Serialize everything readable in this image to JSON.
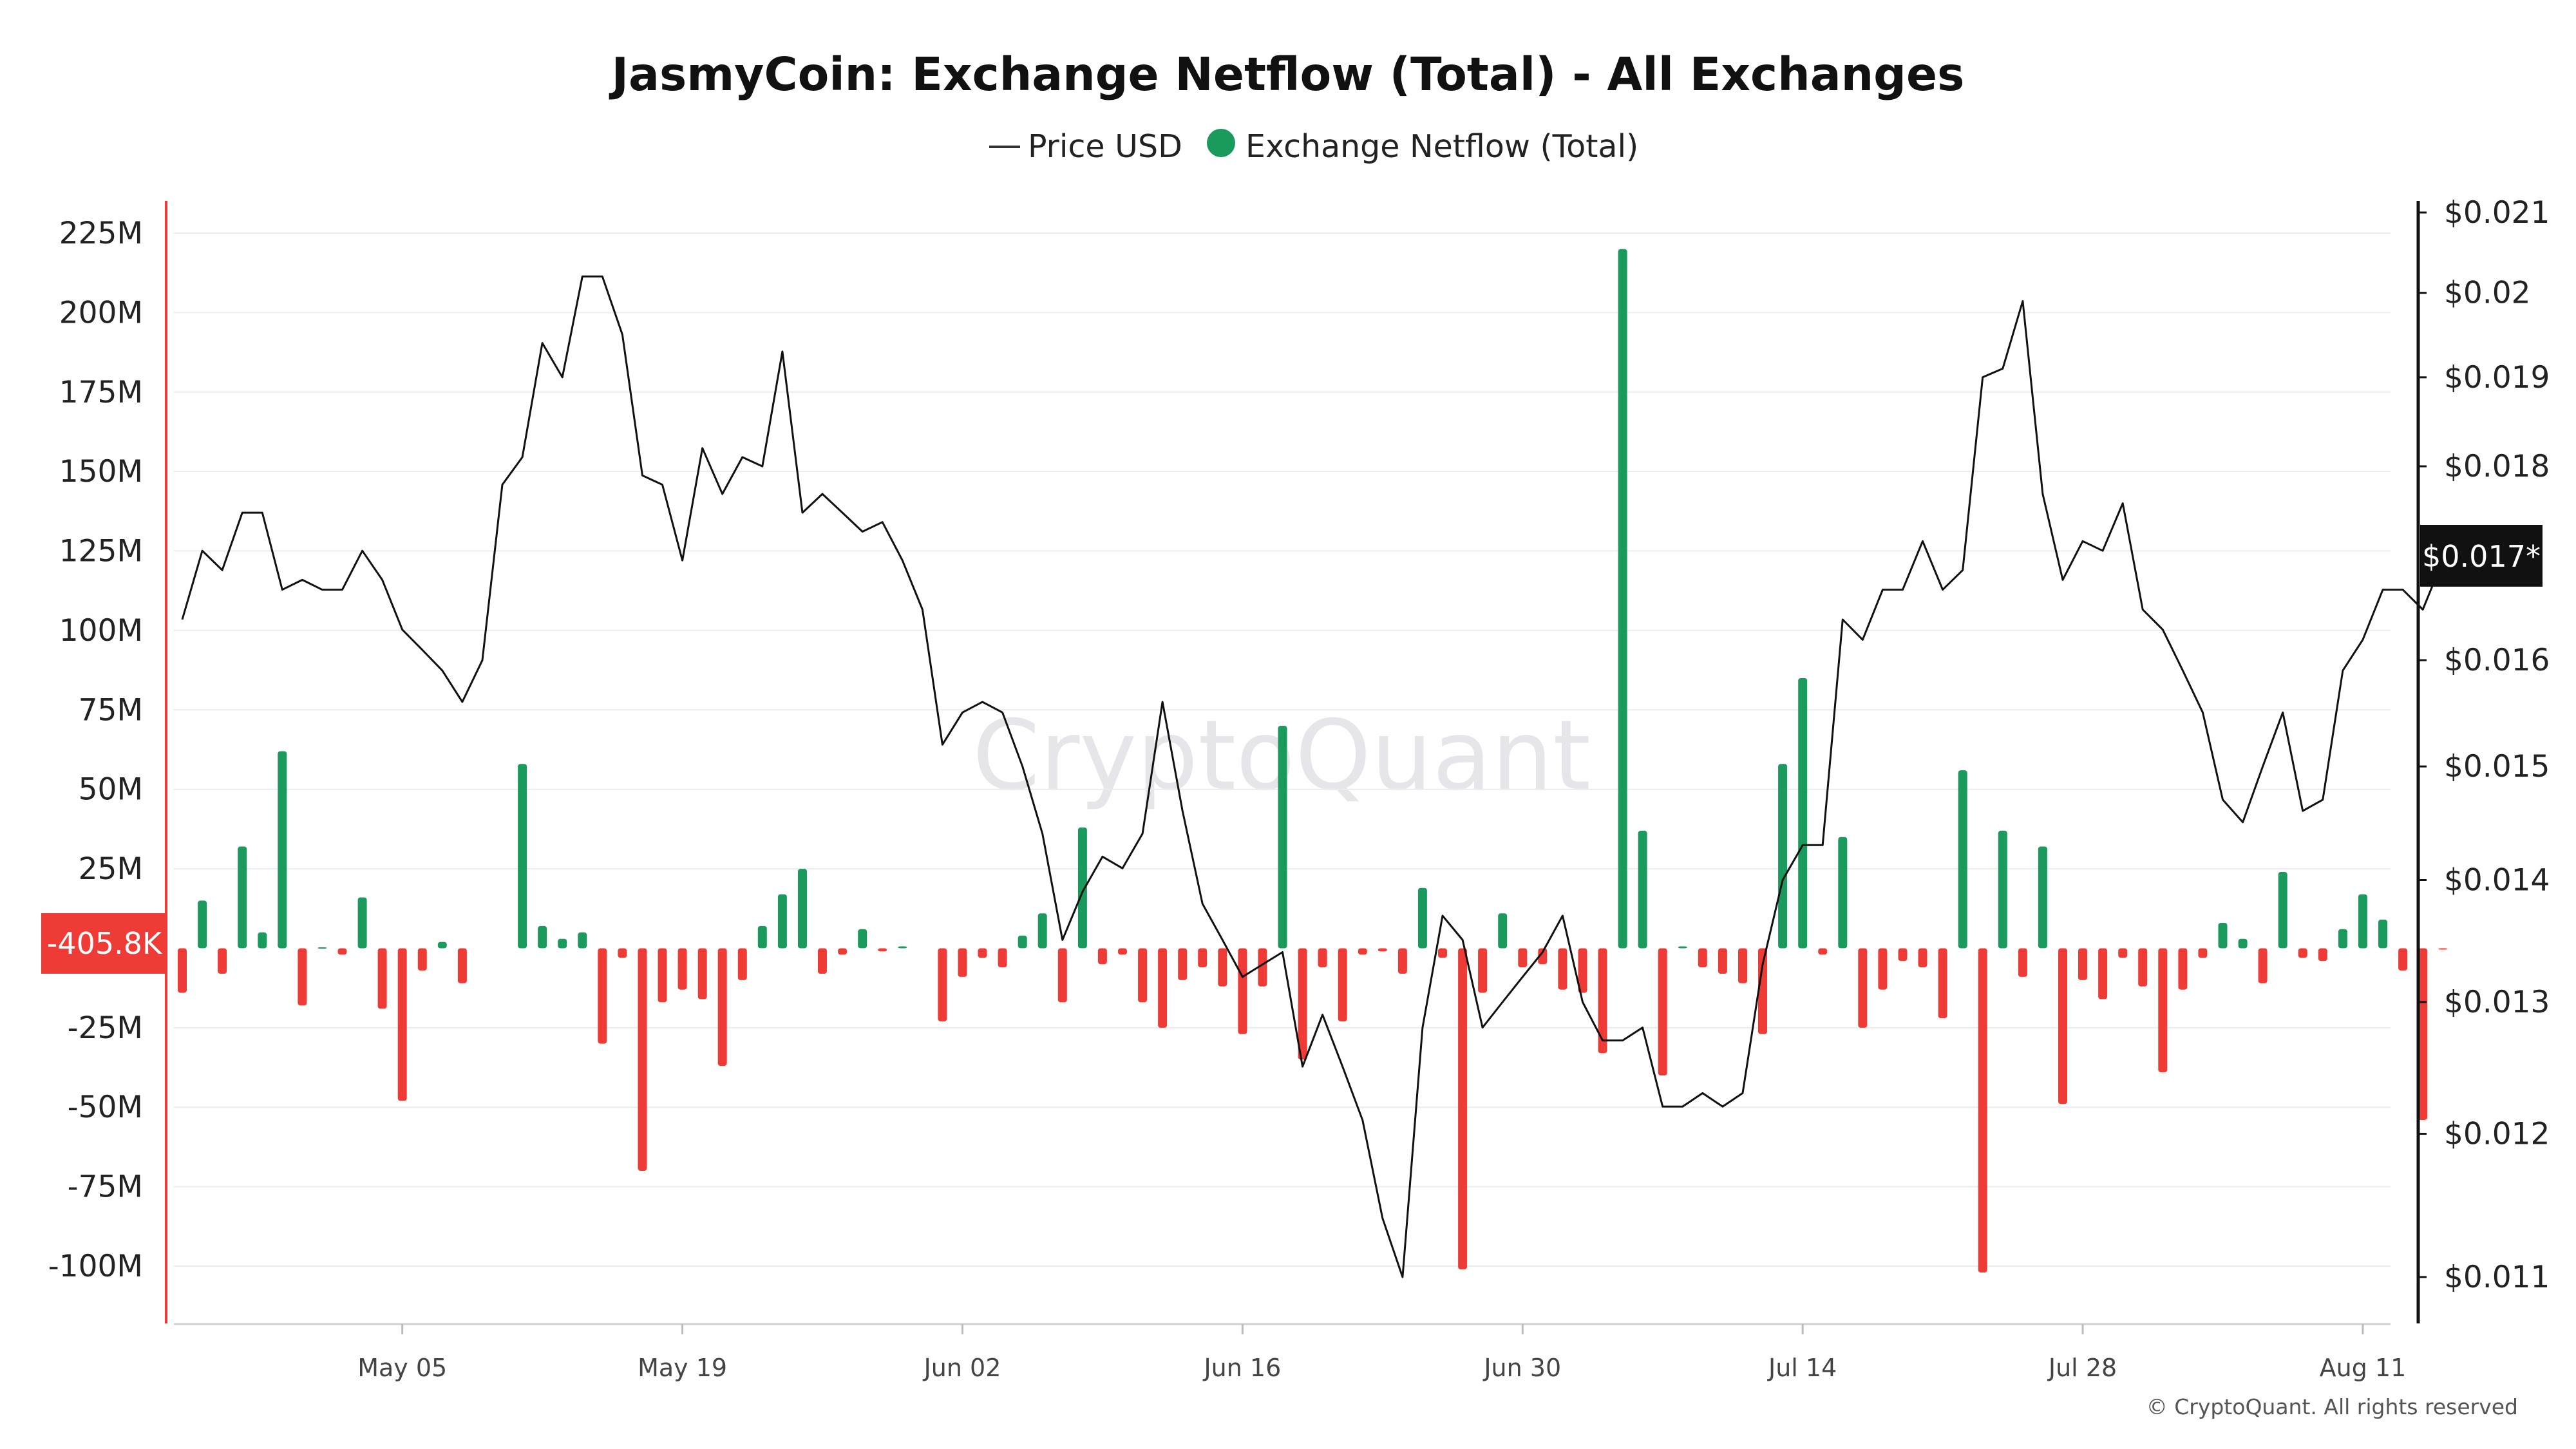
{
  "chart_data": {
    "type": "bar+line",
    "title": "JasmyCoin: Exchange Netflow (Total) - All Exchanges",
    "legend": [
      {
        "name": "Price USD",
        "marker": "line",
        "color": "#222222"
      },
      {
        "name": "Exchange Netflow (Total)",
        "marker": "dot",
        "color": "#1a9a5c"
      }
    ],
    "legend_position": "top-center",
    "colors": {
      "positive": "#1a9a5c",
      "negative": "#ef3b36",
      "price_line": "#111111",
      "left_axis": "#ef3b36",
      "right_axis": "#111111",
      "grid": "#ececec"
    },
    "x_axis": {
      "start": "2024-04-24",
      "end": "2024-08-12",
      "ticks": [
        "May 05",
        "May 19",
        "Jun 02",
        "Jun 16",
        "Jun 30",
        "Jul 14",
        "Jul 28",
        "Aug 11"
      ],
      "tick_dates": [
        "2024-05-05",
        "2024-05-19",
        "2024-06-02",
        "2024-06-16",
        "2024-06-30",
        "2024-07-14",
        "2024-07-28",
        "2024-08-11"
      ]
    },
    "left_axis": {
      "ticks": [
        "225M",
        "200M",
        "175M",
        "150M",
        "125M",
        "100M",
        "75M",
        "50M",
        "25M",
        "-25M",
        "-50M",
        "-75M",
        "-100M"
      ],
      "tick_values": [
        225,
        200,
        175,
        150,
        125,
        100,
        75,
        50,
        25,
        -25,
        -50,
        -75,
        -100
      ],
      "units": "millions",
      "range": [
        -118,
        238
      ],
      "current_value_label": "-405.8K",
      "current_value": -0.4058
    },
    "right_axis": {
      "scale": "log",
      "ticks": [
        "$0.021",
        "$0.02",
        "$0.019",
        "$0.018",
        "$0.016",
        "$0.015",
        "$0.014",
        "$0.013",
        "$0.012",
        "$0.011"
      ],
      "tick_values": [
        0.021,
        0.02,
        0.019,
        0.018,
        0.016,
        0.015,
        0.014,
        0.013,
        0.012,
        0.011
      ],
      "range": [
        0.01055,
        0.02115
      ],
      "current_price_label": "$0.017*",
      "current_price": 0.017
    },
    "series": [
      {
        "name": "Exchange Netflow (Total)",
        "type": "bar",
        "axis": "left",
        "unit": "M",
        "points": [
          [
            "2024-04-24",
            -14
          ],
          [
            "2024-04-25",
            15
          ],
          [
            "2024-04-26",
            -8
          ],
          [
            "2024-04-27",
            32
          ],
          [
            "2024-04-28",
            5
          ],
          [
            "2024-04-29",
            62
          ],
          [
            "2024-04-30",
            -18
          ],
          [
            "2024-05-01",
            0.3
          ],
          [
            "2024-05-02",
            -2
          ],
          [
            "2024-05-03",
            16
          ],
          [
            "2024-05-04",
            -19
          ],
          [
            "2024-05-05",
            -48
          ],
          [
            "2024-05-06",
            -7
          ],
          [
            "2024-05-07",
            2
          ],
          [
            "2024-05-08",
            -11
          ],
          [
            "2024-05-11",
            58
          ],
          [
            "2024-05-12",
            7
          ],
          [
            "2024-05-13",
            3
          ],
          [
            "2024-05-14",
            5
          ],
          [
            "2024-05-15",
            -30
          ],
          [
            "2024-05-16",
            -3
          ],
          [
            "2024-05-17",
            -70
          ],
          [
            "2024-05-18",
            -17
          ],
          [
            "2024-05-19",
            -13
          ],
          [
            "2024-05-20",
            -16
          ],
          [
            "2024-05-21",
            -37
          ],
          [
            "2024-05-22",
            -10
          ],
          [
            "2024-05-23",
            7
          ],
          [
            "2024-05-24",
            17
          ],
          [
            "2024-05-25",
            25
          ],
          [
            "2024-05-26",
            -8
          ],
          [
            "2024-05-27",
            -2
          ],
          [
            "2024-05-28",
            6
          ],
          [
            "2024-05-29",
            -1
          ],
          [
            "2024-05-30",
            0.6
          ],
          [
            "2024-06-01",
            -23
          ],
          [
            "2024-06-02",
            -9
          ],
          [
            "2024-06-03",
            -3
          ],
          [
            "2024-06-04",
            -6
          ],
          [
            "2024-06-05",
            4
          ],
          [
            "2024-06-06",
            11
          ],
          [
            "2024-06-07",
            -17
          ],
          [
            "2024-06-08",
            38
          ],
          [
            "2024-06-09",
            -5
          ],
          [
            "2024-06-10",
            -2
          ],
          [
            "2024-06-11",
            -17
          ],
          [
            "2024-06-12",
            -25
          ],
          [
            "2024-06-13",
            -10
          ],
          [
            "2024-06-14",
            -6
          ],
          [
            "2024-06-15",
            -12
          ],
          [
            "2024-06-16",
            -27
          ],
          [
            "2024-06-17",
            -12
          ],
          [
            "2024-06-18",
            70
          ],
          [
            "2024-06-19",
            -35
          ],
          [
            "2024-06-20",
            -6
          ],
          [
            "2024-06-21",
            -23
          ],
          [
            "2024-06-22",
            -2
          ],
          [
            "2024-06-23",
            -1
          ],
          [
            "2024-06-24",
            -8
          ],
          [
            "2024-06-25",
            19
          ],
          [
            "2024-06-26",
            -3
          ],
          [
            "2024-06-27",
            -101
          ],
          [
            "2024-06-28",
            -14
          ],
          [
            "2024-06-29",
            11
          ],
          [
            "2024-06-30",
            -6
          ],
          [
            "2024-07-01",
            -5
          ],
          [
            "2024-07-02",
            -13
          ],
          [
            "2024-07-03",
            -14
          ],
          [
            "2024-07-04",
            -33
          ],
          [
            "2024-07-05",
            220
          ],
          [
            "2024-07-06",
            37
          ],
          [
            "2024-07-07",
            -40
          ],
          [
            "2024-07-08",
            0.6
          ],
          [
            "2024-07-09",
            -6
          ],
          [
            "2024-07-10",
            -8
          ],
          [
            "2024-07-11",
            -11
          ],
          [
            "2024-07-12",
            -27
          ],
          [
            "2024-07-13",
            58
          ],
          [
            "2024-07-14",
            85
          ],
          [
            "2024-07-15",
            -2
          ],
          [
            "2024-07-16",
            35
          ],
          [
            "2024-07-17",
            -25
          ],
          [
            "2024-07-18",
            -13
          ],
          [
            "2024-07-19",
            -4
          ],
          [
            "2024-07-20",
            -6
          ],
          [
            "2024-07-21",
            -22
          ],
          [
            "2024-07-22",
            56
          ],
          [
            "2024-07-23",
            -102
          ],
          [
            "2024-07-24",
            37
          ],
          [
            "2024-07-25",
            -9
          ],
          [
            "2024-07-26",
            32
          ],
          [
            "2024-07-27",
            -49
          ],
          [
            "2024-07-28",
            -10
          ],
          [
            "2024-07-29",
            -16
          ],
          [
            "2024-07-30",
            -3
          ],
          [
            "2024-07-31",
            -12
          ],
          [
            "2024-08-01",
            -39
          ],
          [
            "2024-08-02",
            -13
          ],
          [
            "2024-08-03",
            -3
          ],
          [
            "2024-08-04",
            8
          ],
          [
            "2024-08-05",
            3
          ],
          [
            "2024-08-06",
            -11
          ],
          [
            "2024-08-07",
            24
          ],
          [
            "2024-08-08",
            -3
          ],
          [
            "2024-08-09",
            -4
          ],
          [
            "2024-08-10",
            6
          ],
          [
            "2024-08-11",
            17
          ],
          [
            "2024-08-12",
            9
          ],
          [
            "2024-08-13",
            -7
          ],
          [
            "2024-08-14",
            -54
          ],
          [
            "2024-08-15",
            -0.4058
          ]
        ]
      },
      {
        "name": "Price USD",
        "type": "line",
        "axis": "right",
        "unit": "USD",
        "points": [
          [
            "2024-04-24",
            0.0164
          ],
          [
            "2024-04-25",
            0.0171
          ],
          [
            "2024-04-26",
            0.0169
          ],
          [
            "2024-04-27",
            0.0175
          ],
          [
            "2024-04-28",
            0.0175
          ],
          [
            "2024-04-29",
            0.0167
          ],
          [
            "2024-04-30",
            0.0168
          ],
          [
            "2024-05-01",
            0.0167
          ],
          [
            "2024-05-02",
            0.0167
          ],
          [
            "2024-05-03",
            0.0171
          ],
          [
            "2024-05-04",
            0.0168
          ],
          [
            "2024-05-05",
            0.0163
          ],
          [
            "2024-05-06",
            0.0161
          ],
          [
            "2024-05-07",
            0.0159
          ],
          [
            "2024-05-08",
            0.0156
          ],
          [
            "2024-05-09",
            0.016
          ],
          [
            "2024-05-10",
            0.0178
          ],
          [
            "2024-05-11",
            0.0181
          ],
          [
            "2024-05-12",
            0.0194
          ],
          [
            "2024-05-13",
            0.019
          ],
          [
            "2024-05-14",
            0.0202
          ],
          [
            "2024-05-15",
            0.0202
          ],
          [
            "2024-05-16",
            0.0195
          ],
          [
            "2024-05-17",
            0.0179
          ],
          [
            "2024-05-18",
            0.0178
          ],
          [
            "2024-05-19",
            0.017
          ],
          [
            "2024-05-20",
            0.0182
          ],
          [
            "2024-05-21",
            0.0177
          ],
          [
            "2024-05-22",
            0.0181
          ],
          [
            "2024-05-23",
            0.018
          ],
          [
            "2024-05-24",
            0.0193
          ],
          [
            "2024-05-25",
            0.0175
          ],
          [
            "2024-05-26",
            0.0177
          ],
          [
            "2024-05-27",
            0.0175
          ],
          [
            "2024-05-28",
            0.0173
          ],
          [
            "2024-05-29",
            0.0174
          ],
          [
            "2024-05-30",
            0.017
          ],
          [
            "2024-05-31",
            0.0165
          ],
          [
            "2024-06-01",
            0.0152
          ],
          [
            "2024-06-02",
            0.0155
          ],
          [
            "2024-06-03",
            0.0156
          ],
          [
            "2024-06-04",
            0.0155
          ],
          [
            "2024-06-05",
            0.015
          ],
          [
            "2024-06-06",
            0.0144
          ],
          [
            "2024-06-07",
            0.0135
          ],
          [
            "2024-06-08",
            0.0139
          ],
          [
            "2024-06-09",
            0.0142
          ],
          [
            "2024-06-10",
            0.0141
          ],
          [
            "2024-06-11",
            0.0144
          ],
          [
            "2024-06-12",
            0.0156
          ],
          [
            "2024-06-13",
            0.0146
          ],
          [
            "2024-06-14",
            0.0138
          ],
          [
            "2024-06-15",
            0.0135
          ],
          [
            "2024-06-16",
            0.0132
          ],
          [
            "2024-06-17",
            0.0133
          ],
          [
            "2024-06-18",
            0.0134
          ],
          [
            "2024-06-19",
            0.0125
          ],
          [
            "2024-06-20",
            0.0129
          ],
          [
            "2024-06-21",
            0.0125
          ],
          [
            "2024-06-22",
            0.0121
          ],
          [
            "2024-06-23",
            0.0114
          ],
          [
            "2024-06-24",
            0.011
          ],
          [
            "2024-06-25",
            0.0128
          ],
          [
            "2024-06-26",
            0.0137
          ],
          [
            "2024-06-27",
            0.0135
          ],
          [
            "2024-06-28",
            0.0128
          ],
          [
            "2024-06-29",
            0.013
          ],
          [
            "2024-06-30",
            0.0132
          ],
          [
            "2024-07-01",
            0.0134
          ],
          [
            "2024-07-02",
            0.0137
          ],
          [
            "2024-07-03",
            0.013
          ],
          [
            "2024-07-04",
            0.0127
          ],
          [
            "2024-07-05",
            0.0127
          ],
          [
            "2024-07-06",
            0.0128
          ],
          [
            "2024-07-07",
            0.0122
          ],
          [
            "2024-07-08",
            0.0122
          ],
          [
            "2024-07-09",
            0.0123
          ],
          [
            "2024-07-10",
            0.0122
          ],
          [
            "2024-07-11",
            0.0123
          ],
          [
            "2024-07-12",
            0.0133
          ],
          [
            "2024-07-13",
            0.014
          ],
          [
            "2024-07-14",
            0.0143
          ],
          [
            "2024-07-15",
            0.0143
          ],
          [
            "2024-07-16",
            0.0164
          ],
          [
            "2024-07-17",
            0.0162
          ],
          [
            "2024-07-18",
            0.0167
          ],
          [
            "2024-07-19",
            0.0167
          ],
          [
            "2024-07-20",
            0.0172
          ],
          [
            "2024-07-21",
            0.0167
          ],
          [
            "2024-07-22",
            0.0169
          ],
          [
            "2024-07-23",
            0.019
          ],
          [
            "2024-07-24",
            0.0191
          ],
          [
            "2024-07-25",
            0.0199
          ],
          [
            "2024-07-26",
            0.0177
          ],
          [
            "2024-07-27",
            0.0168
          ],
          [
            "2024-07-28",
            0.0172
          ],
          [
            "2024-07-29",
            0.0171
          ],
          [
            "2024-07-30",
            0.0176
          ],
          [
            "2024-07-31",
            0.0165
          ],
          [
            "2024-08-01",
            0.0163
          ],
          [
            "2024-08-02",
            0.0159
          ],
          [
            "2024-08-03",
            0.0155
          ],
          [
            "2024-08-04",
            0.0147
          ],
          [
            "2024-08-05",
            0.0145
          ],
          [
            "2024-08-06",
            0.015
          ],
          [
            "2024-08-07",
            0.0155
          ],
          [
            "2024-08-08",
            0.0146
          ],
          [
            "2024-08-09",
            0.0147
          ],
          [
            "2024-08-10",
            0.0159
          ],
          [
            "2024-08-11",
            0.0162
          ],
          [
            "2024-08-12",
            0.0167
          ],
          [
            "2024-08-13",
            0.0167
          ],
          [
            "2024-08-14",
            0.0165
          ],
          [
            "2024-08-15",
            0.017
          ]
        ]
      }
    ],
    "grid": true,
    "watermark": "CryptoQuant",
    "copyright": "© CryptoQuant. All rights reserved"
  }
}
